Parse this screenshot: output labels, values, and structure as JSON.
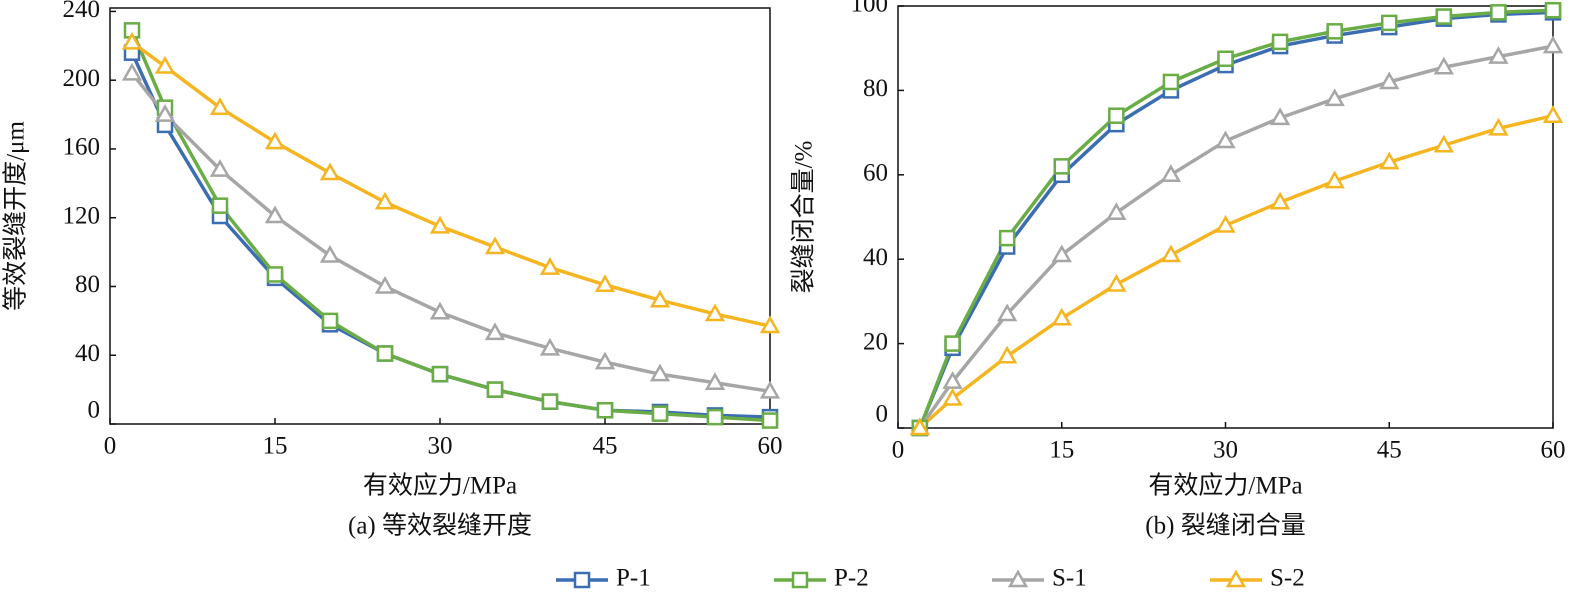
{
  "chart_data": [
    {
      "type": "line",
      "subtitle": "(a) 等效裂缝开度",
      "xlabel": "有效应力/MPa",
      "ylabel": "等效裂缝开度/μm",
      "x": [
        2,
        5,
        10,
        15,
        20,
        25,
        30,
        35,
        40,
        45,
        50,
        55,
        60
      ],
      "xlim": [
        0,
        60
      ],
      "xticks": [
        0,
        15,
        30,
        45,
        60
      ],
      "ylim": [
        0,
        242
      ],
      "yticks": [
        0,
        40,
        80,
        120,
        160,
        200,
        240
      ],
      "series": [
        {
          "name": "P-1",
          "color": "#3b6db3",
          "marker": "square",
          "values": [
            216,
            174,
            121,
            85,
            58,
            41,
            29,
            20,
            13,
            8,
            7,
            5,
            4
          ]
        },
        {
          "name": "P-2",
          "color": "#6aac46",
          "marker": "square",
          "values": [
            229,
            184,
            127,
            87,
            60,
            41,
            29,
            20,
            13,
            8,
            6,
            4,
            2
          ]
        },
        {
          "name": "S-1",
          "color": "#a6a6a6",
          "marker": "triangle",
          "values": [
            204,
            180,
            148,
            121,
            98,
            80,
            65,
            53,
            44,
            36,
            29,
            24,
            19
          ]
        },
        {
          "name": "S-2",
          "color": "#f5b520",
          "marker": "triangle",
          "values": [
            222,
            208,
            184,
            164,
            146,
            129,
            115,
            103,
            91,
            81,
            72,
            64,
            57
          ]
        }
      ]
    },
    {
      "type": "line",
      "subtitle": "(b) 裂缝闭合量",
      "xlabel": "有效应力/MPa",
      "ylabel": "裂缝闭合量/%",
      "x": [
        2,
        5,
        10,
        15,
        20,
        25,
        30,
        35,
        40,
        45,
        50,
        55,
        60
      ],
      "xlim": [
        0,
        60
      ],
      "xticks": [
        0,
        15,
        30,
        45,
        60
      ],
      "ylim": [
        0,
        100
      ],
      "yticks": [
        0,
        20,
        40,
        60,
        80,
        100
      ],
      "series": [
        {
          "color": "#3b6db3",
          "marker": "square",
          "values": [
            0,
            19,
            43,
            60,
            72,
            80,
            86,
            90.5,
            93,
            95,
            97,
            98,
            98.5
          ]
        },
        {
          "color": "#6aac46",
          "marker": "square",
          "values": [
            0,
            20,
            45,
            62,
            74,
            82,
            87.5,
            91.5,
            94,
            96,
            97.5,
            98.5,
            99
          ]
        },
        {
          "color": "#a6a6a6",
          "marker": "triangle",
          "values": [
            0,
            11,
            27,
            41,
            51,
            60,
            68,
            73.5,
            78,
            82,
            85.5,
            88,
            90.5
          ]
        },
        {
          "color": "#f5b520",
          "marker": "triangle",
          "values": [
            0,
            7,
            17,
            26,
            34,
            41,
            48,
            53.5,
            58.5,
            63,
            67,
            71,
            74
          ]
        }
      ]
    }
  ]
}
